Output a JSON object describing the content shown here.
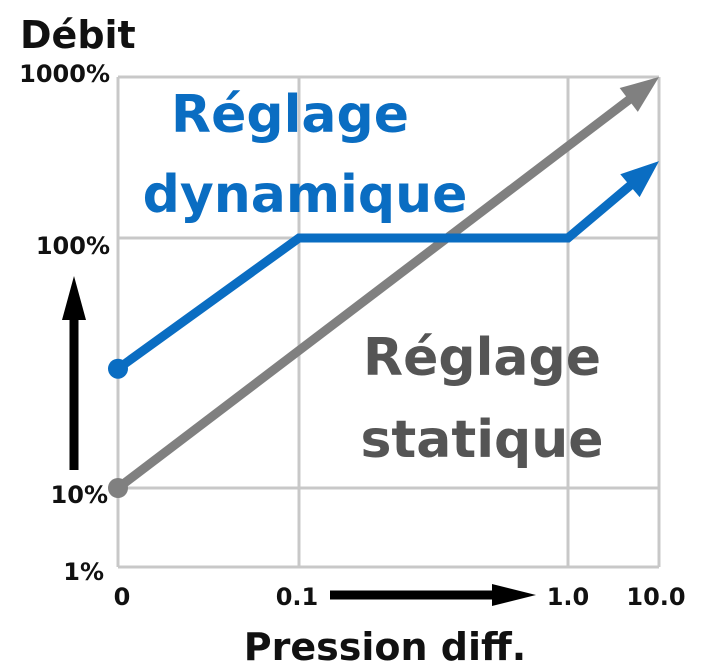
{
  "chart_data": {
    "type": "line",
    "title": "",
    "ylabel": "Débit",
    "xlabel": "Pression diff.",
    "y_scale": "log",
    "x_scale": "log",
    "yticks": [
      "1%",
      "10%",
      "100%",
      "1000%"
    ],
    "xticks": [
      "0",
      "0.1",
      "1.0",
      "10.0"
    ],
    "grid": true,
    "series": [
      {
        "name": "Réglage dynamique",
        "color": "#0a6dc2",
        "label_lines": [
          "Réglage",
          "dynamique"
        ],
        "points": [
          [
            "0",
            "30%"
          ],
          [
            "0.1",
            "100%"
          ],
          [
            "1.0",
            "100%"
          ],
          [
            "10.0",
            "300%"
          ]
        ]
      },
      {
        "name": "Réglage statique",
        "color": "#808080",
        "label_lines": [
          "Réglage",
          "statique"
        ],
        "points": [
          [
            "0",
            "10%"
          ],
          [
            "10.0",
            "1000%"
          ]
        ]
      }
    ],
    "grid_color": "#c8c8c8",
    "arrow_color": "#000000"
  }
}
